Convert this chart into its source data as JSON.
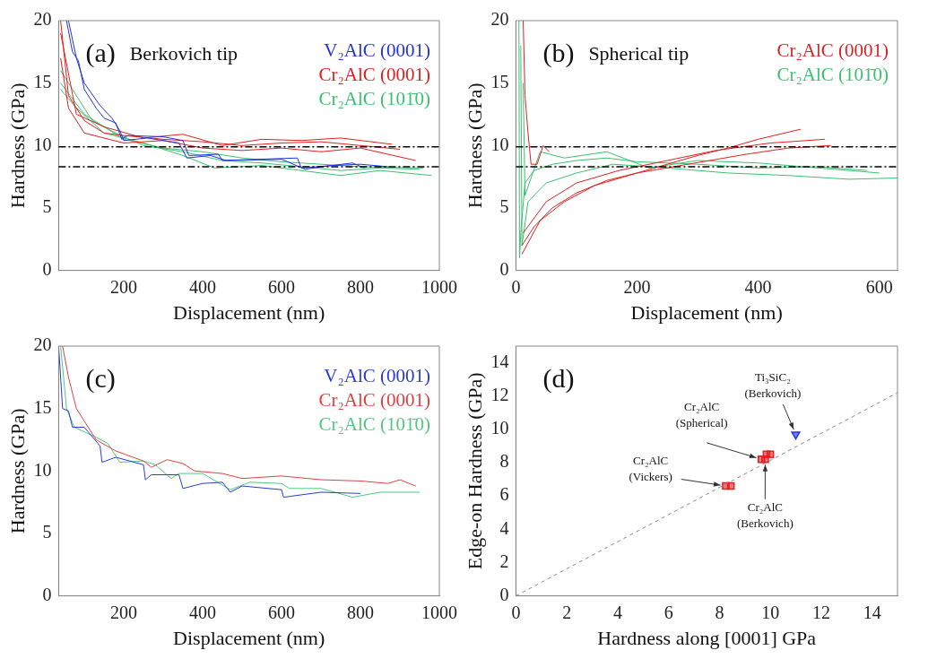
{
  "chart_data": [
    {
      "type": "line",
      "xlabel": "Displacement (nm)",
      "ylabel": "Hardness (GPa)",
      "annotations": [
        "(a)",
        "Berkovich tip"
      ],
      "xlim": [
        35,
        1000
      ],
      "xticks": [
        200,
        400,
        600,
        800,
        1000
      ],
      "ylim": [
        0,
        20
      ],
      "yticks": [
        0,
        5,
        10,
        15,
        20
      ],
      "legend": "top right",
      "marker": "none",
      "ref_lines": [
        {
          "axis": "y",
          "value": 9.9,
          "color": "#000000",
          "line_style": "dashed"
        },
        {
          "axis": "y",
          "value": 8.3,
          "color": "#000000",
          "line_style": "dashed"
        }
      ],
      "series": [
        {
          "name": "V₂AlC (0001)",
          "color": "#2233dd",
          "x": [
            55,
            70,
            85,
            100,
            130,
            150,
            180,
            195,
            210,
            300,
            350,
            365,
            440,
            450,
            640,
            650,
            730,
            800,
            870
          ],
          "values": [
            20,
            17.5,
            16.8,
            14.5,
            13,
            12.2,
            11.8,
            10.5,
            10.8,
            10.7,
            10.4,
            9.2,
            9.3,
            8.8,
            9.0,
            8.2,
            8.4,
            8.5,
            8.3
          ]
        },
        {
          "color": "#2233dd",
          "x": [
            60,
            80,
            100,
            140,
            170,
            190,
            200,
            260,
            340,
            360,
            420,
            460,
            600,
            660,
            700,
            780,
            810
          ],
          "values": [
            20,
            17,
            15,
            13.2,
            12.2,
            11.2,
            10.4,
            10.6,
            10.2,
            9.0,
            9.2,
            8.8,
            8.9,
            8.1,
            8.3,
            8.6,
            8.2
          ]
        },
        {
          "name": "Cr₂AlC (0001)",
          "color": "#e02020",
          "x": [
            40,
            60,
            100,
            150,
            200,
            300,
            400,
            500,
            600,
            700,
            800,
            900
          ],
          "values": [
            20,
            14,
            12,
            11,
            10.8,
            10.5,
            10.3,
            10.0,
            10.2,
            10.3,
            10.0,
            9.7
          ]
        },
        {
          "color": "#e02020",
          "x": [
            40,
            60,
            100,
            200,
            300,
            400,
            500,
            600,
            700,
            800,
            940
          ],
          "values": [
            17,
            13,
            11,
            10.2,
            10.4,
            9.8,
            9.6,
            9.8,
            9.5,
            9.8,
            8.8
          ]
        },
        {
          "color": "#e02020",
          "x": [
            40,
            80,
            150,
            250,
            350,
            450,
            550,
            650,
            750,
            880
          ],
          "values": [
            19,
            12.5,
            11.5,
            10.6,
            10.9,
            10.0,
            10.5,
            10.4,
            10.6,
            10.1
          ]
        },
        {
          "name": "Cr₂AlC (101̄0)",
          "color": "#3cc070",
          "x": [
            40,
            70,
            120,
            180,
            250,
            350,
            450,
            550,
            650,
            750,
            850,
            950
          ],
          "values": [
            16,
            14.5,
            12,
            11,
            10,
            9.5,
            8.8,
            8.6,
            8.3,
            8.0,
            8.2,
            8.1
          ]
        },
        {
          "color": "#3cc070",
          "x": [
            40,
            80,
            150,
            250,
            350,
            430,
            550,
            650,
            750,
            850,
            980
          ],
          "values": [
            14.5,
            13,
            11,
            10.2,
            9.2,
            8.2,
            8.4,
            8.0,
            7.6,
            8.0,
            7.6
          ]
        },
        {
          "color": "#3cc070",
          "x": [
            40,
            100,
            200,
            300,
            400,
            500,
            600,
            700,
            800,
            960
          ],
          "values": [
            15,
            12.5,
            10.5,
            9.8,
            9.5,
            9.0,
            8.7,
            8.5,
            8.3,
            8.2
          ]
        }
      ]
    },
    {
      "type": "line",
      "xlabel": "Displacement (nm)",
      "ylabel": "Hardness (GPa)",
      "annotations": [
        "(b)",
        "Spherical tip"
      ],
      "xlim": [
        0,
        630
      ],
      "xticks": [
        0,
        200,
        400,
        600
      ],
      "ylim": [
        0,
        20
      ],
      "yticks": [
        0,
        5,
        10,
        15,
        20
      ],
      "legend": "top right",
      "marker": "none",
      "ref_lines": [
        {
          "axis": "y",
          "value": 9.9,
          "color": "#000000",
          "line_style": "dashed"
        },
        {
          "axis": "y",
          "value": 8.3,
          "color": "#000000",
          "line_style": "dashed"
        }
      ],
      "series": [
        {
          "name": "Cr₂AlC (0001)",
          "color": "#e02020",
          "x": [
            12,
            15,
            20,
            25,
            35,
            45,
            55
          ],
          "values": [
            20,
            14,
            11,
            8.5,
            8.5,
            10,
            9.5
          ]
        },
        {
          "color": "#e02020",
          "x": [
            10,
            30,
            60,
            100,
            150,
            200,
            250,
            300,
            350,
            400,
            470
          ],
          "values": [
            2,
            3.5,
            5,
            6.2,
            7.2,
            7.8,
            8.5,
            9.2,
            9.8,
            10.5,
            11.3
          ]
        },
        {
          "color": "#e02020",
          "x": [
            10,
            40,
            80,
            130,
            200,
            260,
            320,
            380,
            450,
            520
          ],
          "values": [
            1.3,
            4,
            5.5,
            6.8,
            7.8,
            8.3,
            8.8,
            9.3,
            9.8,
            10
          ]
        },
        {
          "color": "#e02020",
          "x": [
            12,
            50,
            100,
            170,
            250,
            330,
            420,
            510
          ],
          "values": [
            3,
            5.5,
            7,
            8,
            8.8,
            9.6,
            10.2,
            10.5
          ]
        },
        {
          "name": "Cr₂AlC (101̄0)",
          "color": "#3cc070",
          "x": [
            5,
            6,
            8,
            15,
            30,
            60,
            100,
            150,
            200,
            300,
            400,
            500,
            580
          ],
          "values": [
            20,
            1,
            3,
            7,
            8,
            8.5,
            8.8,
            9,
            8.7,
            8.5,
            8.2,
            8.3,
            8.0
          ]
        },
        {
          "color": "#3cc070",
          "x": [
            8,
            10,
            20,
            50,
            100,
            160,
            250,
            350,
            450,
            550,
            630
          ],
          "values": [
            18,
            2,
            5.5,
            7,
            7.8,
            8.5,
            8.2,
            7.8,
            7.6,
            7.3,
            7.4
          ]
        },
        {
          "color": "#3cc070",
          "x": [
            12,
            15,
            40,
            80,
            150,
            220,
            300,
            400,
            500,
            600
          ],
          "values": [
            15,
            6,
            9.5,
            9,
            9.5,
            8.2,
            8.8,
            8.6,
            8.2,
            7.8
          ]
        }
      ]
    },
    {
      "type": "line",
      "xlabel": "Displacement (nm)",
      "ylabel": "Hardness (GPa)",
      "annotations": [
        "(c)"
      ],
      "xlim": [
        35,
        1000
      ],
      "xticks": [
        200,
        400,
        600,
        800,
        1000
      ],
      "ylim": [
        0,
        20
      ],
      "yticks": [
        0,
        5,
        10,
        15,
        20
      ],
      "legend": "top right",
      "marker": "none",
      "series": [
        {
          "name": "V₂AlC (0001)",
          "color": "#2a3bd0",
          "x": [
            35,
            45,
            60,
            70,
            100,
            140,
            145,
            180,
            250,
            255,
            270,
            340,
            350,
            400,
            450,
            470,
            500,
            600,
            605,
            700,
            800
          ],
          "values": [
            20,
            15,
            14.8,
            13.5,
            13.5,
            12,
            10.7,
            11.1,
            10.5,
            9.3,
            9.7,
            9.7,
            8.6,
            9.0,
            9.1,
            8.3,
            8.8,
            8.5,
            7.9,
            8.3,
            8.2
          ]
        },
        {
          "name": "Cr₂AlC (0001)",
          "color": "#e04040",
          "x": [
            45,
            60,
            80,
            100,
            130,
            180,
            250,
            270,
            310,
            350,
            380,
            450,
            500,
            550,
            600,
            700,
            800,
            870,
            900,
            940
          ],
          "values": [
            20,
            17.5,
            15,
            14,
            12.5,
            11.6,
            10.8,
            10.3,
            10.9,
            10.6,
            10,
            9.8,
            9.4,
            9.5,
            9.6,
            9.3,
            9.2,
            9.0,
            9.3,
            8.8
          ]
        },
        {
          "name": "Cr₂AlC (101̄0)",
          "color": "#50c880",
          "x": [
            40,
            55,
            75,
            130,
            160,
            190,
            250,
            280,
            320,
            340,
            400,
            470,
            520,
            600,
            620,
            700,
            780,
            850,
            950
          ],
          "values": [
            20,
            15,
            13.5,
            12.7,
            12.2,
            10.7,
            10.8,
            10.5,
            9.4,
            9.8,
            9.8,
            8.5,
            9.1,
            9.0,
            8.6,
            8.6,
            7.9,
            8.3,
            8.3
          ]
        }
      ]
    },
    {
      "type": "scatter",
      "xlabel": "Hardness along [0001] GPa",
      "ylabel": "Edge-on Hardness (GPa)",
      "xlim": [
        0,
        15
      ],
      "xticks": [
        0,
        2,
        4,
        6,
        8,
        10,
        12,
        14
      ],
      "ylim": [
        0,
        15
      ],
      "yticks": [
        0,
        2,
        4,
        6,
        8,
        10,
        12,
        14
      ],
      "annotations": [
        "(d)",
        {
          "text": "Ti₃SiC₂\n(Berkovich)",
          "x": 11.0,
          "y": 9.7
        },
        {
          "text": "Cr₂AlC\n(Spherical)",
          "x": 9.65,
          "y": 8.2
        },
        {
          "text": "Cr₂AlC\n(Vickers)",
          "x": 8.25,
          "y": 6.6
        },
        {
          "text": "Cr₂AlC\n(Berkovich)",
          "x": 9.8,
          "y": 8.2
        }
      ],
      "series": [
        {
          "type": "line",
          "color": "#888888",
          "line_style": "dashed",
          "marker": "none",
          "x": [
            0,
            15
          ],
          "values": [
            0,
            12.2
          ]
        },
        {
          "color": "#e02020",
          "marker": "square",
          "x": [
            8.25,
            8.45,
            9.65,
            9.8,
            9.85,
            10.0
          ],
          "values": [
            6.6,
            6.6,
            8.2,
            8.2,
            8.5,
            8.5
          ]
        },
        {
          "color": "#2233dd",
          "marker": "triangle",
          "x": [
            11.0
          ],
          "values": [
            9.7
          ]
        }
      ]
    }
  ]
}
